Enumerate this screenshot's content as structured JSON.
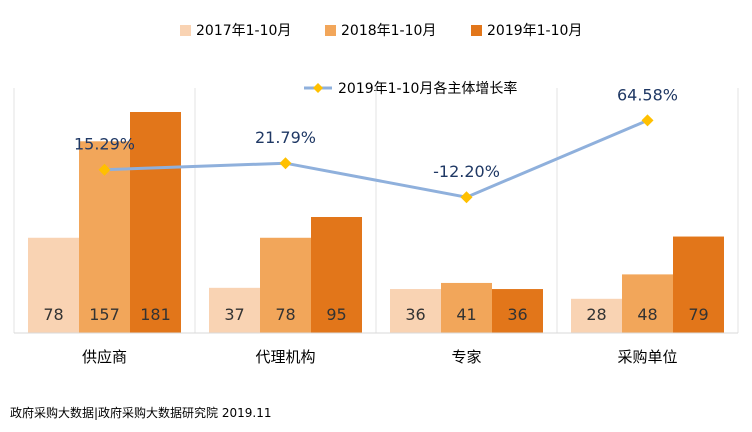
{
  "chart_data": {
    "type": "bar",
    "categories": [
      "供应商",
      "代理机构",
      "专家",
      "采购单位"
    ],
    "series": [
      {
        "name": "2017年1-10月",
        "values": [
          78,
          37,
          36,
          28
        ],
        "color": "#F9D3B3"
      },
      {
        "name": "2018年1-10月",
        "values": [
          157,
          78,
          41,
          48
        ],
        "color": "#F2A65A"
      },
      {
        "name": "2019年1-10月",
        "values": [
          181,
          95,
          36,
          79
        ],
        "color": "#E2761A"
      }
    ],
    "line_series": {
      "name": "2019年1-10月各主体增长率",
      "values": [
        15.29,
        21.79,
        -12.2,
        64.58
      ],
      "labels": [
        "15.29%",
        "21.79%",
        "-12.20%",
        "64.58%"
      ],
      "line_color": "#8FB0DC",
      "marker_color": "#FFC000",
      "label_color": "#1F3864"
    },
    "bar_ylim": [
      0,
      181
    ],
    "line_ylim": [
      -40,
      80
    ],
    "grid": false,
    "legend_position": "top"
  },
  "source": "政府采购大数据|政府采购大数据研究院 2019.11"
}
